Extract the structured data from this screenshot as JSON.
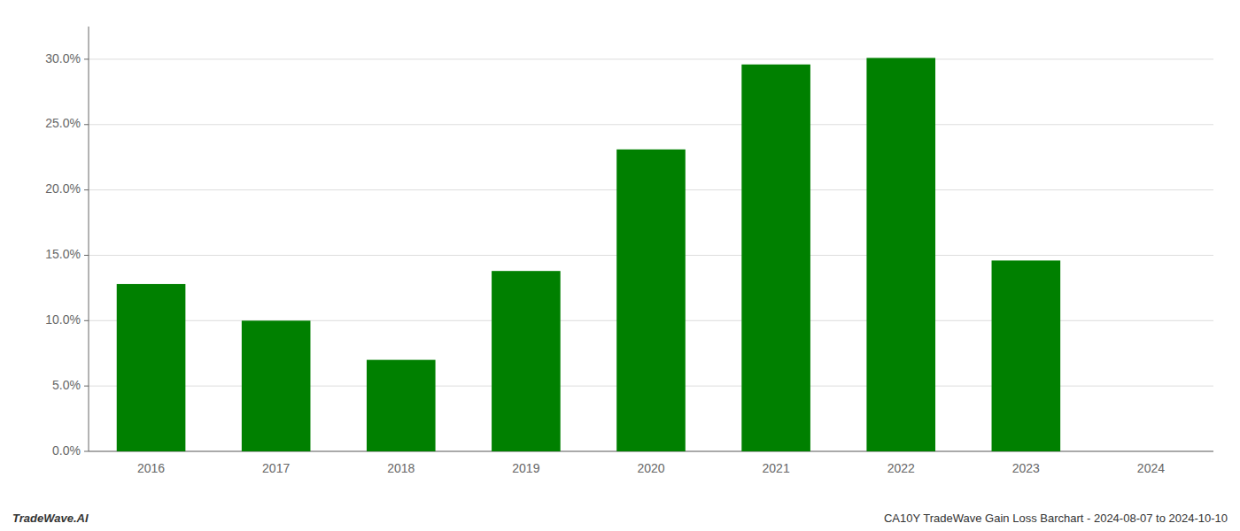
{
  "chart_data": {
    "type": "bar",
    "title": "CA10Y TradeWave Gain Loss Barchart - 2024-08-07 to 2024-10-10",
    "annotations": [
      "TradeWave.AI"
    ],
    "categories": [
      "2016",
      "2017",
      "2018",
      "2019",
      "2020",
      "2021",
      "2022",
      "2023",
      "2024"
    ],
    "values": [
      0.128,
      0.1,
      0.07,
      0.138,
      0.231,
      0.296,
      0.301,
      0.146,
      0.0
    ],
    "color": "#008000",
    "ylim": [
      0,
      0.325
    ],
    "yticks": [
      {
        "value": 0.0,
        "label": "0.0%"
      },
      {
        "value": 0.05,
        "label": "5.0%"
      },
      {
        "value": 0.1,
        "label": "10.0%"
      },
      {
        "value": 0.15,
        "label": "15.0%"
      },
      {
        "value": 0.2,
        "label": "20.0%"
      },
      {
        "value": 0.25,
        "label": "25.0%"
      },
      {
        "value": 0.3,
        "label": "30.0%"
      }
    ],
    "grid": true
  }
}
